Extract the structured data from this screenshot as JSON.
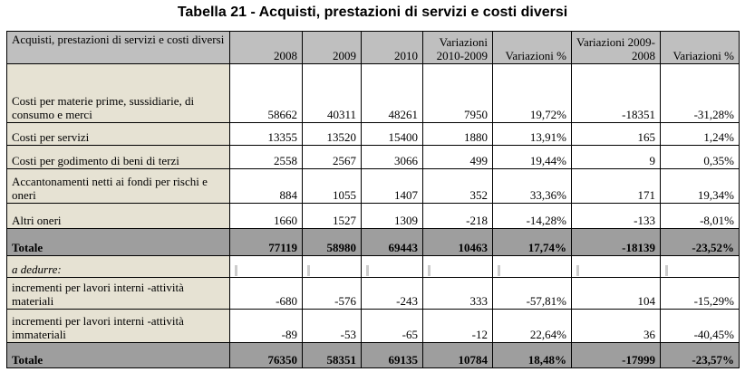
{
  "title": "Tabella 21 - Acquisti, prestazioni di servizi e costi diversi",
  "table": {
    "header": [
      "Acquisti, prestazioni di servizi e costi diversi",
      "2008",
      "2009",
      "2010",
      "Variazioni 2010-2009",
      "Variazioni %",
      "Variazioni 2009-2008",
      "Variazioni %"
    ],
    "rows": [
      [
        "Costi per materie prime, sussidiarie, di consumo e merci",
        "58662",
        "40311",
        "48261",
        "7950",
        "19,72%",
        "-18351",
        "-31,28%"
      ],
      [
        "Costi per servizi",
        "13355",
        "13520",
        "15400",
        "1880",
        "13,91%",
        "165",
        "1,24%"
      ],
      [
        "Costi per godimento di beni di terzi",
        "2558",
        "2567",
        "3066",
        "499",
        "19,44%",
        "9",
        "0,35%"
      ],
      [
        "Accantonamenti netti ai fondi per rischi e oneri",
        "884",
        "1055",
        "1407",
        "352",
        "33,36%",
        "171",
        "19,34%"
      ],
      [
        "Altri oneri",
        "1660",
        "1527",
        "1309",
        "-218",
        "-14,28%",
        "-133",
        "-8,01%"
      ],
      [
        "Totale",
        "77119",
        "58980",
        "69443",
        "10463",
        "17,74%",
        "-18139",
        "-23,52%"
      ],
      [
        "a dedurre:"
      ],
      [
        "incrementi per lavori interni -attività materiali",
        "-680",
        "-576",
        "-243",
        "333",
        "-57,81%",
        "104",
        "-15,29%"
      ],
      [
        "incrementi per lavori interni -attività immateriali",
        "-89",
        "-53",
        "-65",
        "-12",
        "22,64%",
        "36",
        "-40,45%"
      ],
      [
        "Totale",
        "76350",
        "58351",
        "69135",
        "10784",
        "18,48%",
        "-17999",
        "-23,57%"
      ]
    ]
  }
}
